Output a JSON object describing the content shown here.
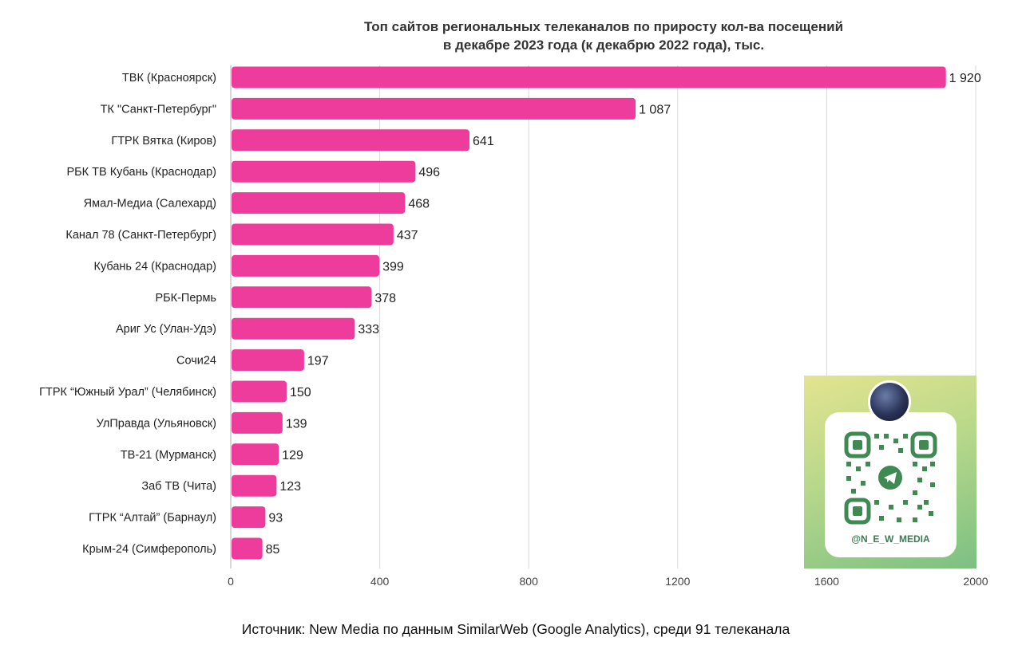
{
  "title_line1": "Топ сайтов региональных телеканалов по приросту кол-ва посещений",
  "title_line2": "в декабре 2023 года (к декабрю 2022 года), тыс.",
  "source": "Источник: New Media по данным SimilarWeb (Google Analytics), среди 91 телеканала",
  "qr_card": {
    "handle": "@N_E_W_MEDIA",
    "avatar_icon": "nm-logo-icon",
    "code_icon": "qr-code-icon"
  },
  "colors": {
    "bar": "#ee3c9c",
    "grid": "#d9d9d9",
    "axis": "#bdbdbd",
    "qr_green": "#3f8a52"
  },
  "chart_data": {
    "type": "bar",
    "orientation": "horizontal",
    "title": "Топ сайтов региональных телеканалов по приросту кол-ва посещений в декабре 2023 года (к декабрю 2022 года), тыс.",
    "xlabel": "",
    "ylabel": "",
    "xlim": [
      0,
      2000
    ],
    "xticks": [
      "0",
      "400",
      "800",
      "1200",
      "1600",
      "2000"
    ],
    "xtick_values": [
      0,
      400,
      800,
      1200,
      1600,
      2000
    ],
    "grid": true,
    "categories": [
      "ТВК (Красноярск)",
      "ТК \"Санкт-Петербург\"",
      "ГТРК Вятка (Киров)",
      "РБК ТВ Кубань (Краснодар)",
      "Ямал-Медиа (Салехард)",
      "Канал 78 (Санкт-Петербург)",
      "Кубань 24 (Краснодар)",
      "РБК-Пермь",
      "Ариг Ус (Улан-Удэ)",
      "Сочи24",
      "ГТРК “Южный Урал” (Челябинск)",
      "УлПравда (Ульяновск)",
      "ТВ-21 (Мурманск)",
      "Заб ТВ (Чита)",
      "ГТРК “Алтай” (Барнаул)",
      "Крым-24 (Симферополь)"
    ],
    "values": [
      1920,
      1087,
      641,
      496,
      468,
      437,
      399,
      378,
      333,
      197,
      150,
      139,
      129,
      123,
      93,
      85
    ],
    "value_labels": [
      "1 920",
      "1 087",
      "641",
      "496",
      "468",
      "437",
      "399",
      "378",
      "333",
      "197",
      "150",
      "139",
      "129",
      "123",
      "93",
      "85"
    ]
  }
}
